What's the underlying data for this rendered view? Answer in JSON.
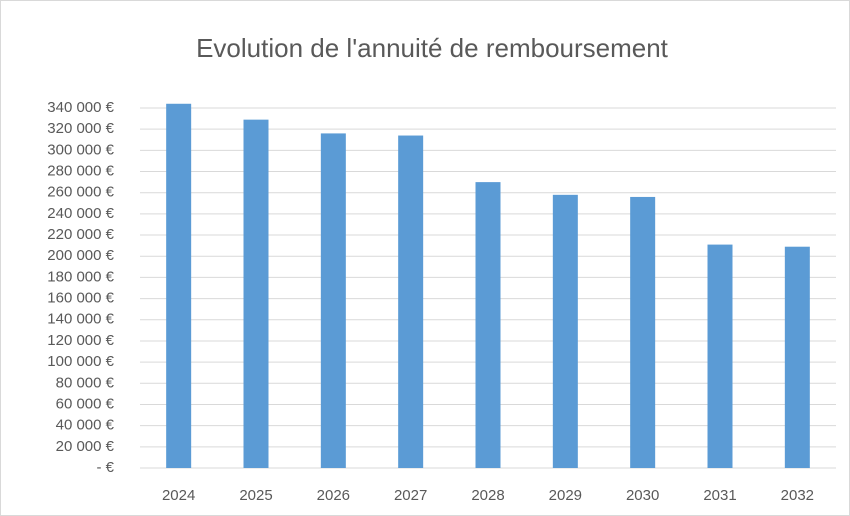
{
  "chart_data": {
    "type": "bar",
    "title": "Evolution de l'annuité de remboursement",
    "categories": [
      "2024",
      "2025",
      "2026",
      "2027",
      "2028",
      "2029",
      "2030",
      "2031",
      "2032"
    ],
    "values": [
      344000,
      329000,
      316000,
      314000,
      270000,
      258000,
      256000,
      211000,
      209000
    ],
    "color": "#5b9bd5",
    "ylim": [
      0,
      350000
    ],
    "yticks": [
      {
        "value": 0,
        "label": "- €"
      },
      {
        "value": 20000,
        "label": "20 000 €"
      },
      {
        "value": 40000,
        "label": "40 000 €"
      },
      {
        "value": 60000,
        "label": "60 000 €"
      },
      {
        "value": 80000,
        "label": "80 000 €"
      },
      {
        "value": 100000,
        "label": "100 000 €"
      },
      {
        "value": 120000,
        "label": "120 000 €"
      },
      {
        "value": 140000,
        "label": "140 000 €"
      },
      {
        "value": 160000,
        "label": "160 000 €"
      },
      {
        "value": 180000,
        "label": "180 000 €"
      },
      {
        "value": 200000,
        "label": "200 000 €"
      },
      {
        "value": 220000,
        "label": "220 000 €"
      },
      {
        "value": 240000,
        "label": "240 000 €"
      },
      {
        "value": 260000,
        "label": "260 000 €"
      },
      {
        "value": 280000,
        "label": "280 000 €"
      },
      {
        "value": 300000,
        "label": "300 000 €"
      },
      {
        "value": 320000,
        "label": "320 000 €"
      },
      {
        "value": 340000,
        "label": "340 000 €"
      }
    ],
    "grid": true
  }
}
